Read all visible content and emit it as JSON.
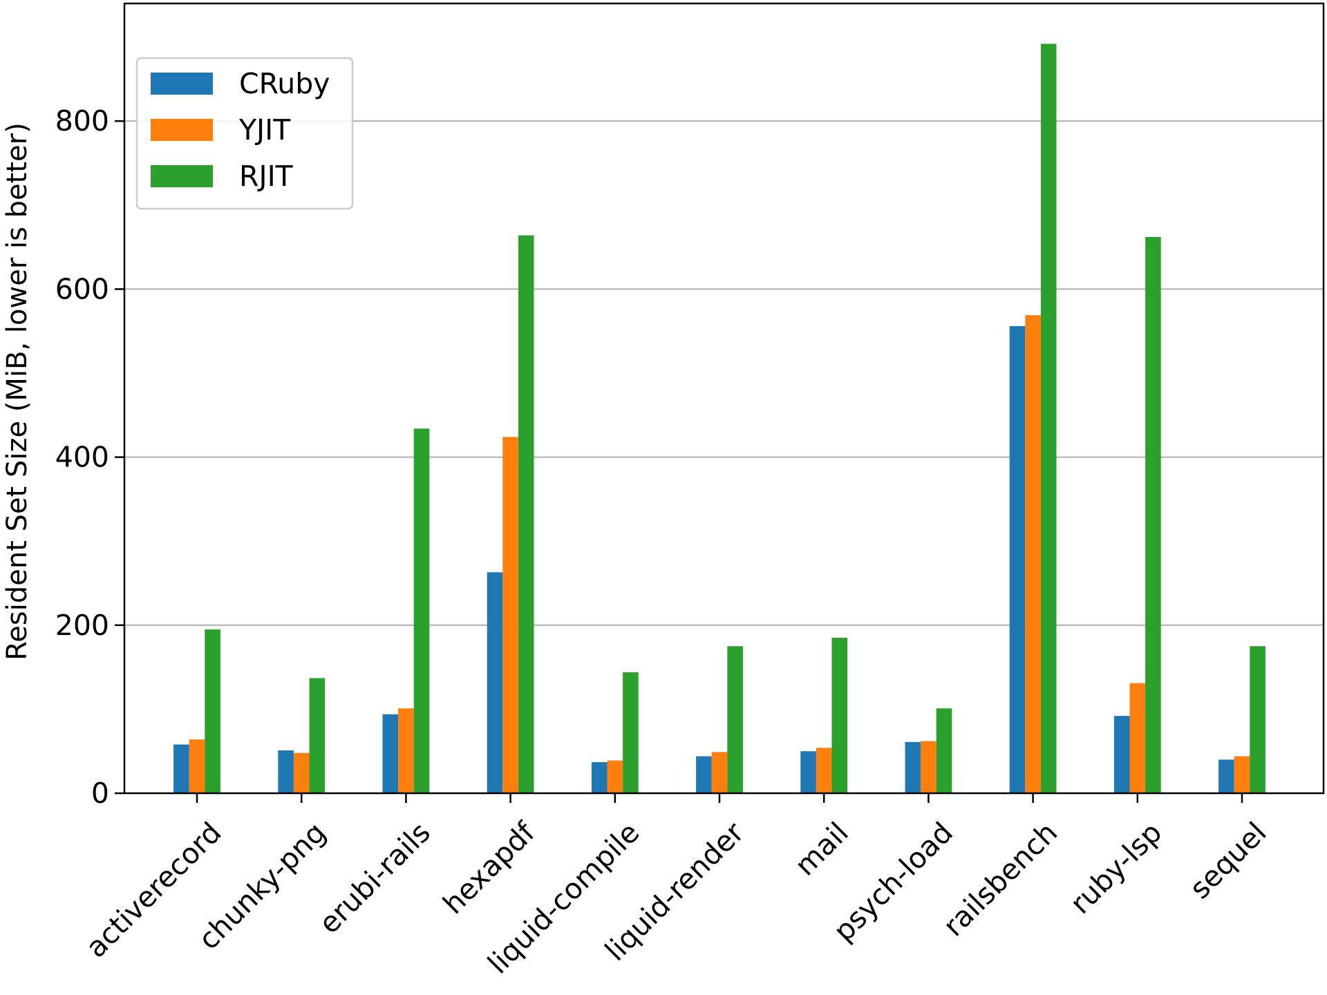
{
  "chart_data": {
    "type": "bar",
    "title": "",
    "xlabel": "",
    "ylabel": "Resident Set Size (MiB, lower is better)",
    "ylim": [
      0,
      940
    ],
    "yticks": [
      0,
      200,
      400,
      600,
      800
    ],
    "grid": "y",
    "legend_position": "top-left",
    "categories": [
      "activerecord",
      "chunky-png",
      "erubi-rails",
      "hexapdf",
      "liquid-compile",
      "liquid-render",
      "mail",
      "psych-load",
      "railsbench",
      "ruby-lsp",
      "sequel"
    ],
    "series": [
      {
        "name": "CRuby",
        "color": "#1f77b4",
        "values": [
          58,
          51,
          94,
          263,
          37,
          44,
          50,
          61,
          556,
          92,
          40
        ]
      },
      {
        "name": "YJIT",
        "color": "#ff7f0e",
        "values": [
          64,
          48,
          101,
          424,
          39,
          49,
          54,
          62,
          569,
          131,
          44
        ]
      },
      {
        "name": "RJIT",
        "color": "#2ca02c",
        "values": [
          195,
          137,
          434,
          664,
          144,
          175,
          185,
          101,
          892,
          662,
          175
        ]
      }
    ]
  }
}
